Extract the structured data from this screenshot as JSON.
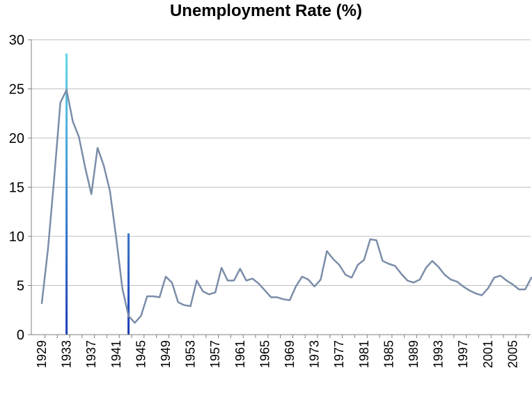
{
  "chart_data": {
    "type": "line",
    "title": "Unemployment Rate (%)",
    "xlabel": "",
    "ylabel": "",
    "ylim": [
      0,
      30
    ],
    "xlim": [
      1929,
      2009
    ],
    "yticks": [
      0,
      5,
      10,
      15,
      20,
      25,
      30
    ],
    "xtick_labels": [
      "1929",
      "1933",
      "1937",
      "1941",
      "1945",
      "1949",
      "1953",
      "1957",
      "1961",
      "1965",
      "1969",
      "1973",
      "1977",
      "1981",
      "1985",
      "1989",
      "1993",
      "1997",
      "2001",
      "2005"
    ],
    "grid": "horizontal",
    "series": [
      {
        "color": "#7B8DA8",
        "x": [
          1929,
          1930,
          1931,
          1932,
          1933,
          1934,
          1935,
          1936,
          1937,
          1938,
          1939,
          1940,
          1941,
          1942,
          1943,
          1944,
          1945,
          1946,
          1947,
          1948,
          1949,
          1950,
          1951,
          1952,
          1953,
          1954,
          1955,
          1956,
          1957,
          1958,
          1959,
          1960,
          1961,
          1962,
          1963,
          1964,
          1965,
          1966,
          1967,
          1968,
          1969,
          1970,
          1971,
          1972,
          1973,
          1974,
          1975,
          1976,
          1977,
          1978,
          1979,
          1980,
          1981,
          1982,
          1983,
          1984,
          1985,
          1986,
          1987,
          1988,
          1989,
          1990,
          1991,
          1992,
          1993,
          1994,
          1995,
          1996,
          1997,
          1998,
          1999,
          2000,
          2001,
          2002,
          2003,
          2004,
          2005,
          2006,
          2007,
          2008
        ],
        "values": [
          3.2,
          8.7,
          15.9,
          23.6,
          24.9,
          21.7,
          20.1,
          17.0,
          14.3,
          19.0,
          17.2,
          14.6,
          9.9,
          4.7,
          1.9,
          1.2,
          1.9,
          3.9,
          3.9,
          3.8,
          5.9,
          5.3,
          3.3,
          3.0,
          2.9,
          5.5,
          4.4,
          4.1,
          4.3,
          6.8,
          5.5,
          5.5,
          6.7,
          5.5,
          5.7,
          5.2,
          4.5,
          3.8,
          3.8,
          3.6,
          3.5,
          4.9,
          5.9,
          5.6,
          4.9,
          5.6,
          8.5,
          7.7,
          7.1,
          6.1,
          5.8,
          7.1,
          7.6,
          9.7,
          9.6,
          7.5,
          7.2,
          7.0,
          6.2,
          5.5,
          5.3,
          5.6,
          6.8,
          7.5,
          6.9,
          6.1,
          5.6,
          5.4,
          4.9,
          4.5,
          4.2,
          4.0,
          4.7,
          5.8,
          6.0,
          5.5,
          5.1,
          4.6,
          4.6,
          5.8
        ]
      }
    ],
    "vertical_markers": [
      {
        "x": 1933,
        "to": 28.6,
        "color_top": "#5FD8E8",
        "color_bottom": "#1A3BB8"
      },
      {
        "x": 1943,
        "to": 10.3,
        "color_top": "#5FD8E8",
        "color_bottom": "#1A3BB8"
      }
    ],
    "colors": {
      "axis": "#808080",
      "grid": "#BFBFBF",
      "text": "#000000"
    }
  }
}
